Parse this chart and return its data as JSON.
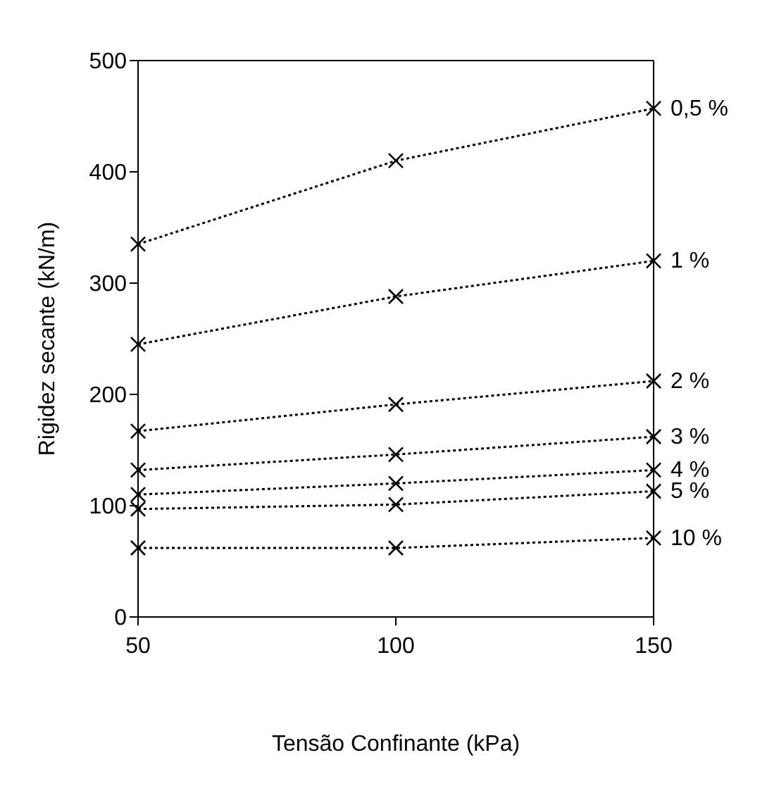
{
  "chart_data": {
    "type": "line",
    "xlabel": "Tensão Confinante (kPa)",
    "ylabel": "Rigidez secante (kN/m)",
    "x": [
      50,
      100,
      150
    ],
    "series": [
      {
        "name": "0,5 %",
        "color": "#000000",
        "values": [
          335,
          410,
          457
        ]
      },
      {
        "name": "1 %",
        "color": "#000000",
        "values": [
          245,
          288,
          320
        ]
      },
      {
        "name": "2 %",
        "color": "#000000",
        "values": [
          167,
          191,
          212
        ]
      },
      {
        "name": "3 %",
        "color": "#000000",
        "values": [
          132,
          146,
          162
        ]
      },
      {
        "name": "4 %",
        "color": "#000000",
        "values": [
          110,
          120,
          132
        ]
      },
      {
        "name": "5 %",
        "color": "#000000",
        "values": [
          97,
          101,
          113
        ]
      },
      {
        "name": "10 %",
        "color": "#000000",
        "values": [
          62,
          62,
          71
        ]
      }
    ],
    "xlim": [
      50,
      150
    ],
    "xticks": [
      50,
      100,
      150
    ],
    "ylim": [
      0,
      500
    ],
    "yticks": [
      0,
      100,
      200,
      300,
      400,
      500
    ],
    "marker": "cross",
    "line_style": "dotted",
    "grid": false
  }
}
